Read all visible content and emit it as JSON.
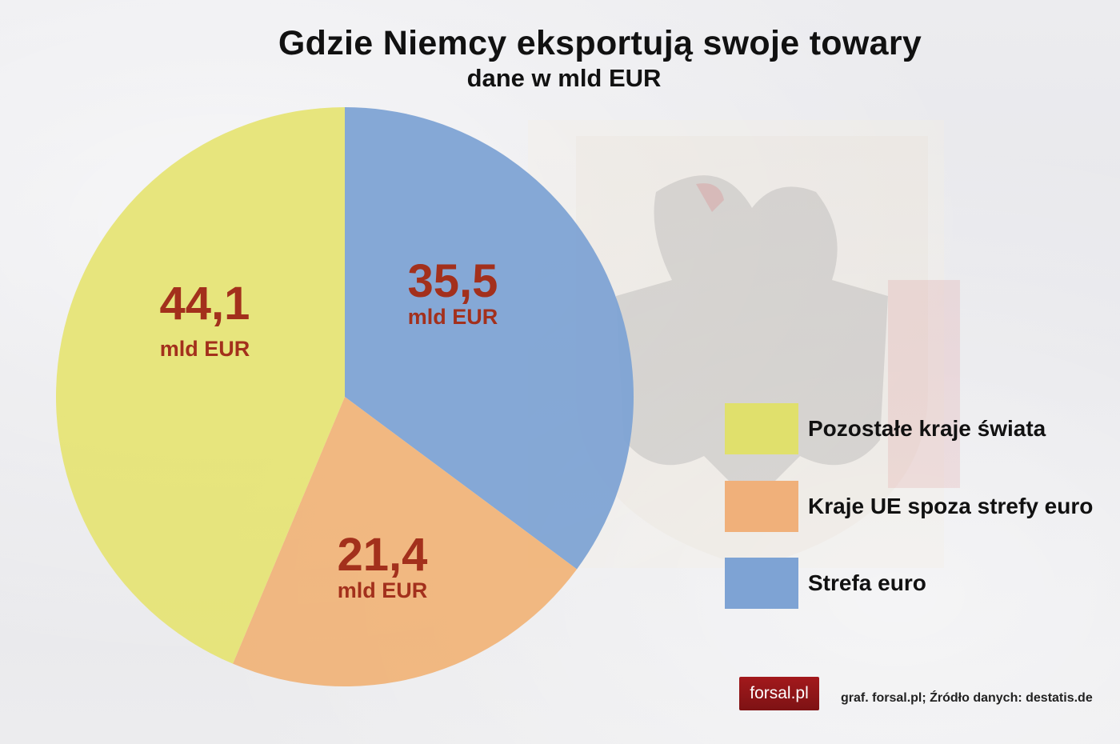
{
  "header": {
    "title": "Gdzie Niemcy eksportują swoje towary",
    "subtitle": "dane w mld EUR"
  },
  "slices": [
    {
      "name": "Strefa euro",
      "value": 35.5,
      "value_label": "35,5",
      "unit": "mld EUR",
      "color": "#7ea3d4"
    },
    {
      "name": "Kraje UE spoza strefy euro",
      "value": 21.4,
      "value_label": "21,4",
      "unit": "mld EUR",
      "color": "#f0b47a"
    },
    {
      "name": "Pozostałe kraje świata",
      "value": 44.1,
      "value_label": "44,1",
      "unit": "mld EUR",
      "color": "#e6e476"
    }
  ],
  "legend": [
    {
      "label": "Pozostałe kraje świata",
      "color": "#e0e06c"
    },
    {
      "label": "Kraje UE spoza strefy euro",
      "color": "#f0b07a"
    },
    {
      "label": "Strefa euro",
      "color": "#7ea3d4"
    }
  ],
  "footer": {
    "logo": "forsal.pl",
    "source": "graf. forsal.pl; Źródło danych: destatis.de"
  },
  "colors": {
    "label_text": "#a3301c",
    "logo_bg": "#8e1517"
  },
  "chart_data": {
    "type": "pie",
    "title": "Gdzie Niemcy eksportują swoje towary",
    "subtitle": "dane w mld EUR",
    "categories": [
      "Strefa euro",
      "Kraje UE spoza strefy euro",
      "Pozostałe kraje świata"
    ],
    "values": [
      35.5,
      21.4,
      44.1
    ],
    "unit": "mld EUR",
    "legend_position": "right",
    "legend_order": [
      "Pozostałe kraje świata",
      "Kraje UE spoza strefy euro",
      "Strefa euro"
    ],
    "start_angle": "12 o'clock, clockwise",
    "source": "graf. forsal.pl; Źródło danych: destatis.de"
  }
}
